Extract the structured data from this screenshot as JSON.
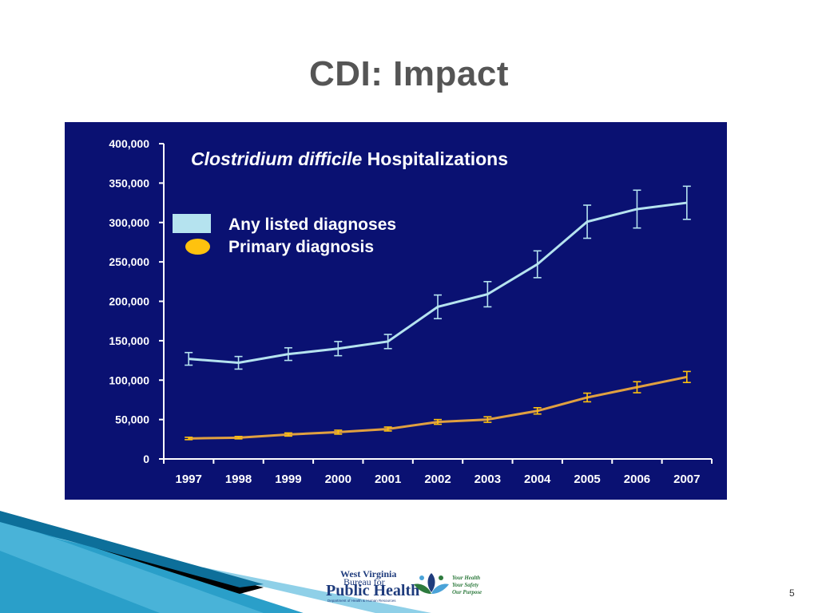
{
  "slide": {
    "title": "CDI: Impact",
    "page_number": "5"
  },
  "logo": {
    "line1": "West Virginia",
    "line2": "Bureau for",
    "line3": "Public Health",
    "line4": "Department of Health & Human Resources",
    "tag1": "Your Health",
    "tag2": "Your Safety",
    "tag3": "Our Purpose"
  },
  "colors": {
    "panel_bg": "#0a1172",
    "any_listed": "#b5e3ef",
    "primary": "#ffc20e",
    "primary_line": "#e0a040",
    "title_text": "#555555"
  },
  "chart_data": {
    "type": "line",
    "title_italic": "Clostridium difficile",
    "title_rest": "Hospitalizations",
    "xlabel": "",
    "ylabel": "",
    "categories": [
      "1997",
      "1998",
      "1999",
      "2000",
      "2001",
      "2002",
      "2003",
      "2004",
      "2005",
      "2006",
      "2007"
    ],
    "ylim": [
      0,
      400000
    ],
    "yticks": [
      0,
      50000,
      100000,
      150000,
      200000,
      250000,
      300000,
      350000,
      400000
    ],
    "ytick_labels": [
      "0",
      "50,000",
      "100,000",
      "150,000",
      "200,000",
      "250,000",
      "300,000",
      "350,000",
      "400,000"
    ],
    "legend_position": "upper-left",
    "grid": false,
    "error_bars": true,
    "series": [
      {
        "name": "Any listed diagnoses",
        "color": "#b5e3ef",
        "values": [
          127000,
          122000,
          133000,
          140000,
          149000,
          193000,
          209000,
          247000,
          301000,
          317000,
          325000
        ],
        "err": [
          8000,
          8000,
          8000,
          9000,
          9000,
          15000,
          16000,
          17000,
          21000,
          24000,
          21000
        ]
      },
      {
        "name": "Primary diagnosis",
        "color": "#ffc20e",
        "line_color": "#e0a040",
        "values": [
          26000,
          27000,
          31000,
          34000,
          38000,
          47000,
          50000,
          61000,
          78000,
          91000,
          104000
        ],
        "err": [
          1500,
          1500,
          2000,
          2500,
          2500,
          3000,
          3500,
          4000,
          5500,
          7000,
          7000
        ]
      }
    ]
  }
}
